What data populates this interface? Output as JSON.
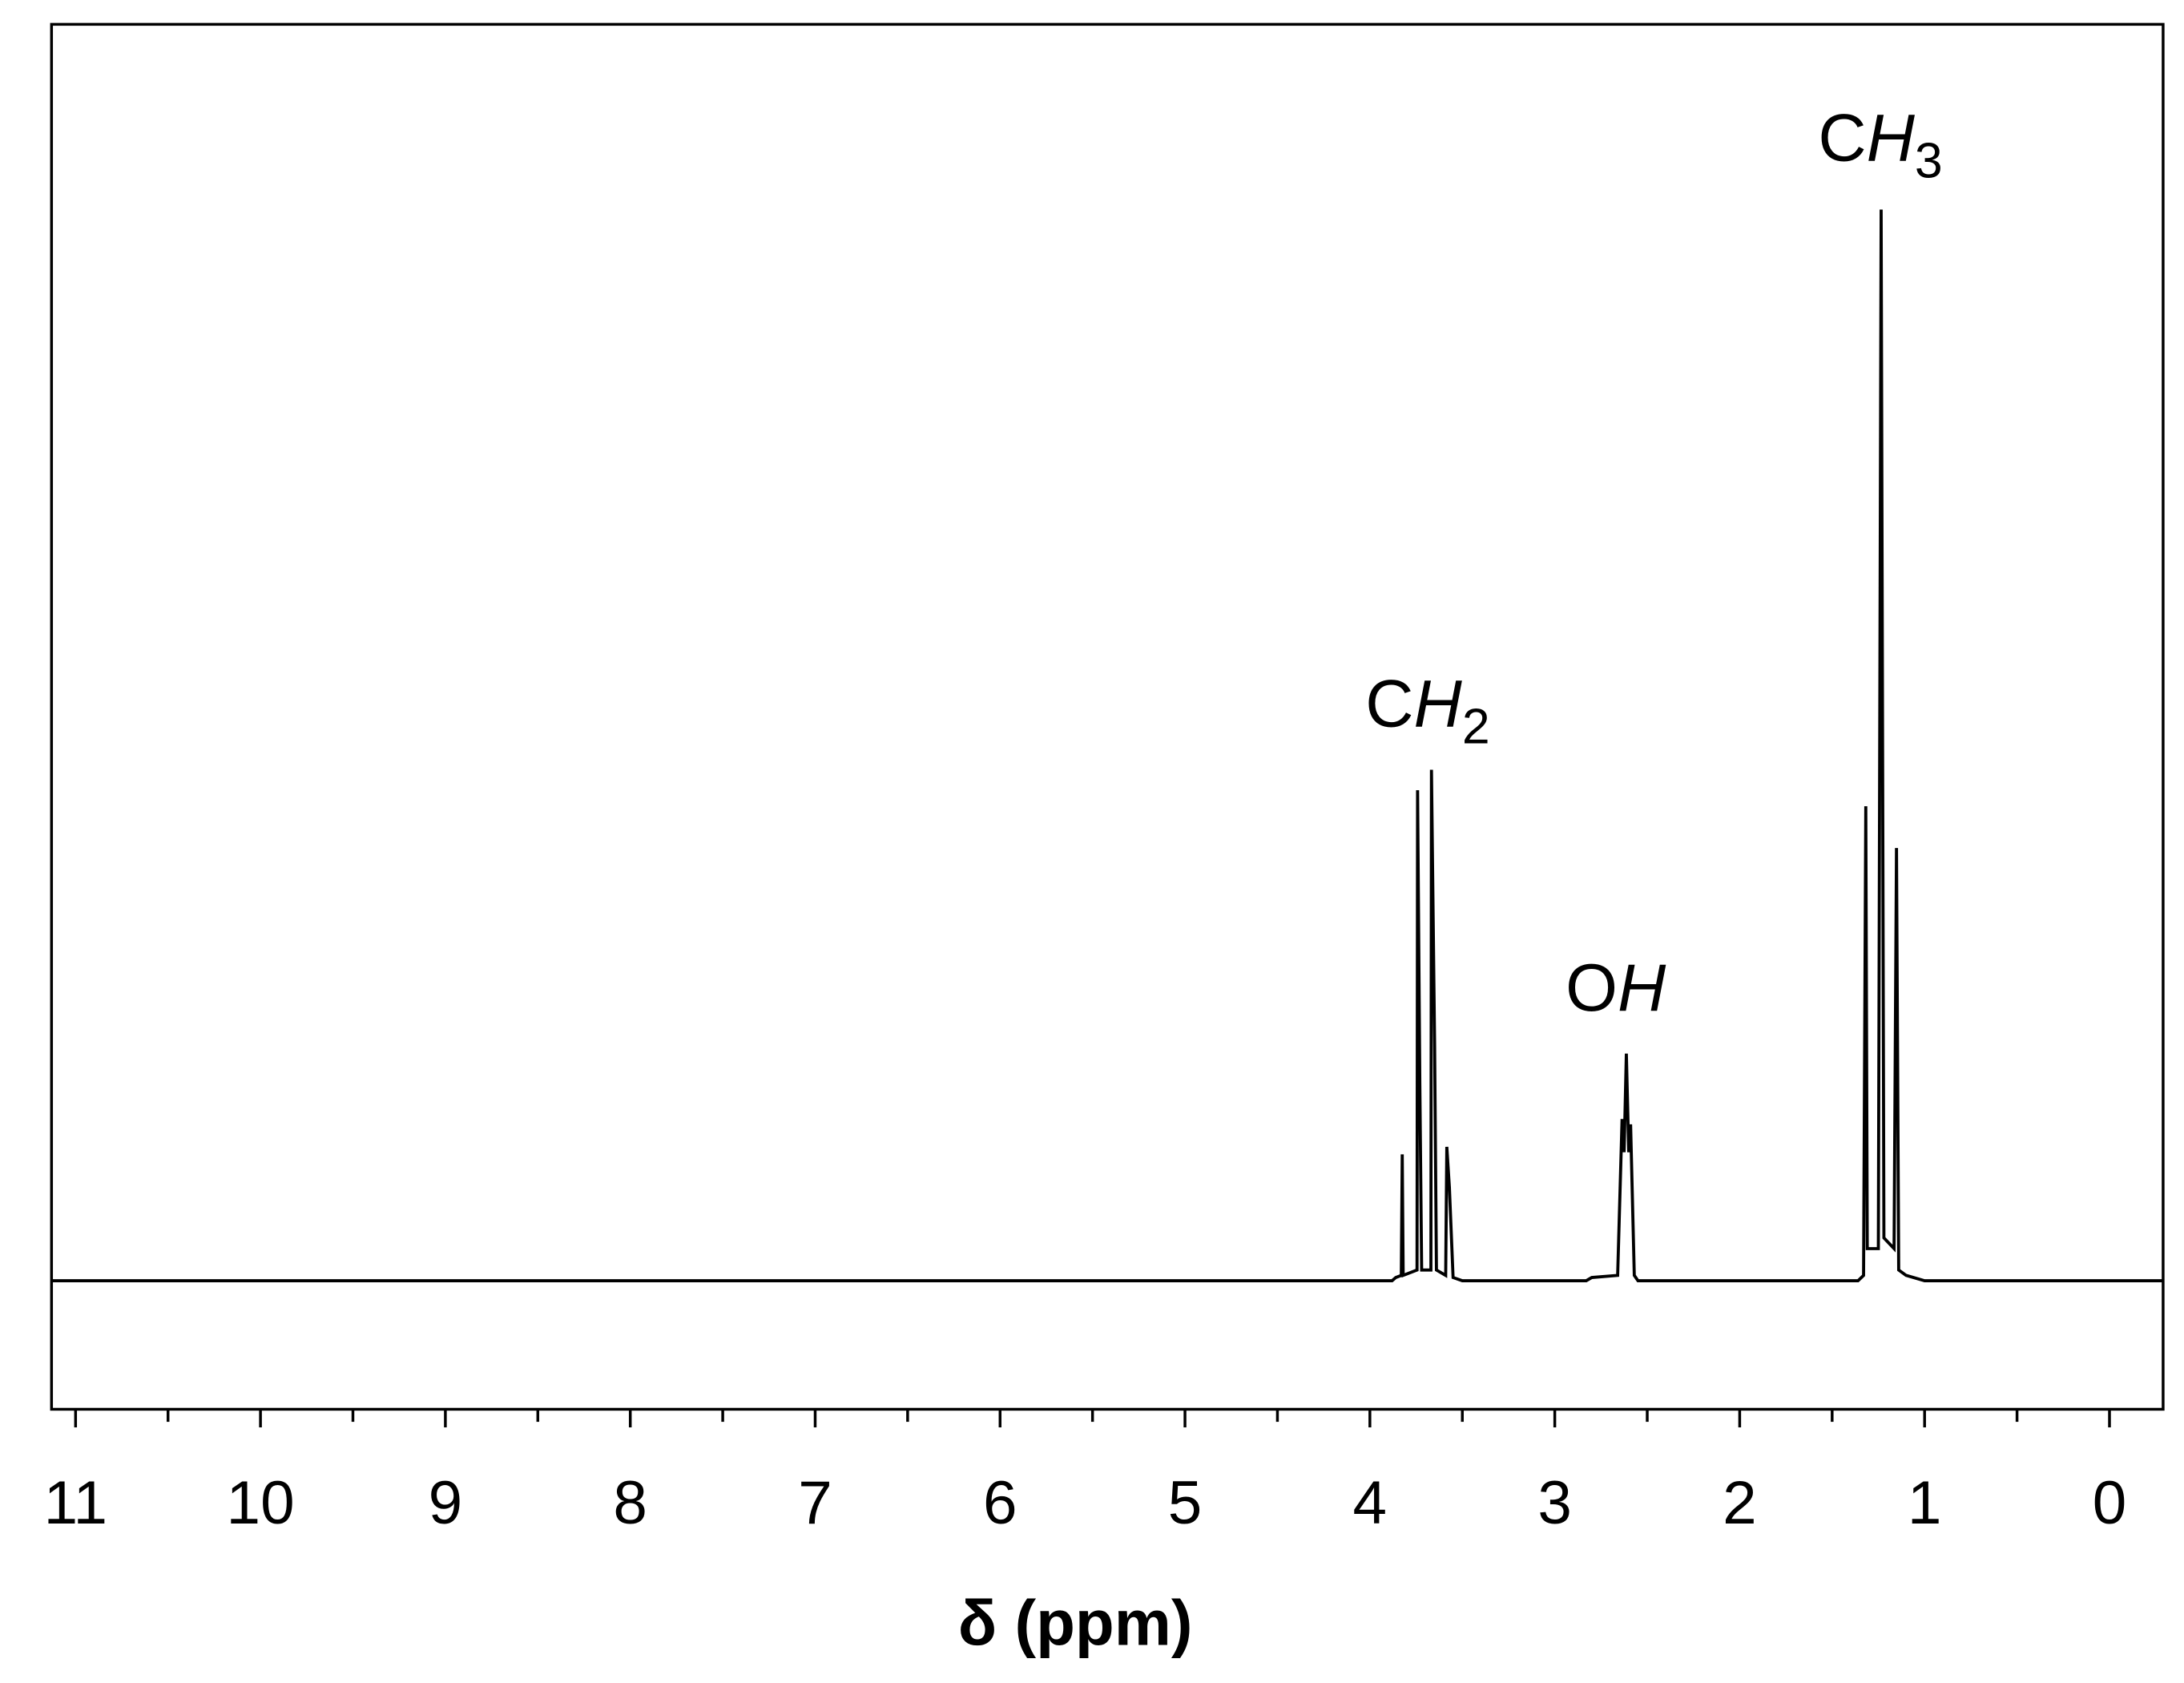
{
  "chart_data": {
    "type": "line",
    "x_label": "δ (ppm)",
    "x": [
      11.13,
      3.88,
      3.86,
      3.83,
      3.825,
      3.82,
      3.745,
      3.742,
      3.73,
      3.72,
      3.67,
      3.667,
      3.65,
      3.64,
      3.59,
      3.584,
      3.57,
      3.55,
      3.5,
      2.83,
      2.8,
      2.66,
      2.636,
      2.625,
      2.613,
      2.6,
      2.59,
      2.57,
      2.55,
      1.36,
      1.33,
      1.318,
      1.31,
      1.25,
      1.235,
      1.22,
      1.165,
      1.152,
      1.14,
      1.1,
      1.0,
      -0.29
    ],
    "values": [
      0,
      0,
      0.3,
      0.5,
      11.8,
      0.5,
      1,
      45.8,
      18.5,
      1,
      1,
      47.7,
      22.1,
      1,
      0.5,
      12.5,
      8.7,
      0.3,
      0,
      0,
      0.3,
      0.5,
      15.1,
      12,
      21.2,
      12,
      14.6,
      0.5,
      0,
      0,
      0.5,
      44.3,
      3,
      3,
      100,
      4,
      3,
      40.4,
      1,
      0.5,
      0,
      0
    ],
    "color": "#000000",
    "xlim": [
      11.13,
      -0.29
    ],
    "ylim": [
      -12,
      117.3
    ],
    "xticks": [
      11,
      10,
      9,
      8,
      7,
      6,
      5,
      4,
      3,
      2,
      1,
      0
    ],
    "xminorticks": [
      10.5,
      9.5,
      8.5,
      7.5,
      6.5,
      5.5,
      4.5,
      3.5,
      2.5,
      1.5,
      0.5
    ],
    "annotations": [
      {
        "main": "C",
        "italic": "H",
        "sub": "2"
      },
      {
        "main": "O",
        "italic": "H"
      },
      {
        "main": "C",
        "italic": "H",
        "sub": "3"
      }
    ]
  }
}
